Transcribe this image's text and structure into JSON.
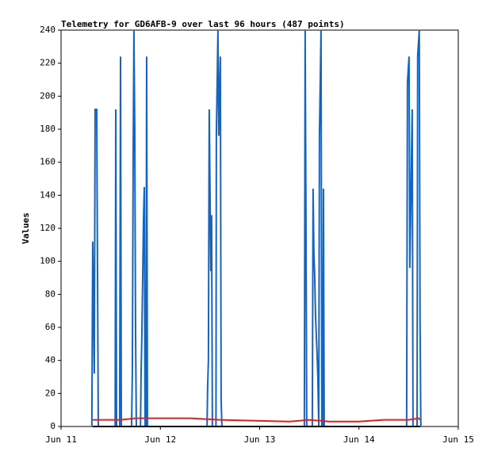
{
  "chart_data": {
    "type": "line",
    "title": "Telemetry for GD6AFB-9 over last 96 hours (487 points)",
    "y_label": "Values",
    "xlim": [
      11,
      15
    ],
    "xticks": [
      {
        "value": 11,
        "label": "Jun 11"
      },
      {
        "value": 12,
        "label": "Jun 12"
      },
      {
        "value": 13,
        "label": "Jun 13"
      },
      {
        "value": 14,
        "label": "Jun 14"
      },
      {
        "value": 15,
        "label": "Jun 15"
      }
    ],
    "ylim": [
      0,
      240
    ],
    "yticks": [
      0,
      20,
      40,
      60,
      80,
      100,
      120,
      140,
      160,
      180,
      200,
      220,
      240
    ],
    "grid": false,
    "series": [
      {
        "color": "#1565c0",
        "x": [
          11.31,
          11.319,
          11.335,
          11.343,
          11.359,
          11.367,
          11.375,
          11.545,
          11.551,
          11.559,
          11.59,
          11.599,
          11.607,
          11.71,
          11.718,
          11.726,
          11.734,
          11.742,
          11.75,
          11.758,
          11.8,
          11.806,
          11.814,
          11.822,
          11.83,
          11.838,
          11.846,
          11.855,
          11.862,
          11.87,
          12.47,
          12.476,
          12.484,
          12.492,
          12.508,
          12.516,
          12.524,
          12.56,
          12.564,
          12.58,
          12.588,
          12.604,
          12.612,
          12.62,
          13.45,
          13.458,
          13.466,
          13.474,
          13.53,
          13.538,
          13.546,
          13.554,
          13.562,
          13.57,
          13.578,
          13.586,
          13.595,
          13.602,
          13.618,
          13.626,
          13.635,
          13.642,
          13.65,
          14.48,
          14.488,
          14.504,
          14.512,
          14.528,
          14.536,
          14.544,
          14.585,
          14.591,
          14.607,
          14.615,
          14.623
        ],
        "values": [
          0,
          112,
          32,
          192,
          192,
          96,
          0,
          0,
          192,
          0,
          0,
          224,
          0,
          0,
          32,
          160,
          240,
          180,
          60,
          0,
          0,
          32,
          56,
          90,
          125,
          145,
          0,
          0,
          224,
          0,
          0,
          24,
          40,
          192,
          94,
          128,
          0,
          0,
          176,
          240,
          176,
          224,
          16,
          0,
          0,
          240,
          128,
          0,
          0,
          144,
          104,
          92,
          68,
          56,
          44,
          30,
          0,
          176,
          240,
          0,
          0,
          144,
          0,
          0,
          208,
          224,
          96,
          160,
          192,
          0,
          0,
          224,
          240,
          64,
          0
        ]
      },
      {
        "color": "#e02020",
        "x": [
          11.319,
          11.6,
          11.75,
          12.3,
          12.6,
          13.3,
          13.5,
          13.7,
          14.0,
          14.25,
          14.5,
          14.6,
          14.615
        ],
        "values": [
          4,
          4,
          5,
          5,
          4,
          3,
          4,
          3,
          3,
          4,
          4,
          5,
          4
        ]
      },
      {
        "color": "#000000",
        "x": [
          11.319,
          14.615
        ],
        "values": [
          0,
          0
        ]
      }
    ]
  }
}
